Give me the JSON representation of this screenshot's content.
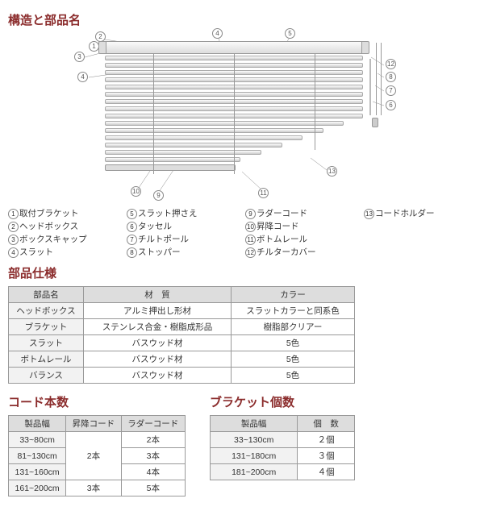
{
  "titles": {
    "structure": "構造と部品名",
    "spec": "部品仕様",
    "cords": "コード本数",
    "brackets": "ブラケット個数"
  },
  "parts": [
    "取付ブラケット",
    "ヘッドボックス",
    "ボックスキャップ",
    "スラット",
    "スラット押さえ",
    "タッセル",
    "チルトポール",
    "ストッパー",
    "ラダーコード",
    "昇降コード",
    "ボトムレール",
    "チルターカバー",
    "コードホルダー"
  ],
  "spec": {
    "headers": [
      "部品名",
      "材　質",
      "カラー"
    ],
    "rows": [
      [
        "ヘッドボックス",
        "アルミ押出し形材",
        "スラットカラーと同系色"
      ],
      [
        "ブラケット",
        "ステンレス合金・樹脂成形品",
        "樹脂部クリアー"
      ],
      [
        "スラット",
        "バスウッド材",
        "5色"
      ],
      [
        "ボトムレール",
        "バスウッド材",
        "5色"
      ],
      [
        "バランス",
        "バスウッド材",
        "5色"
      ]
    ]
  },
  "cords": {
    "headers": [
      "製品幅",
      "昇降コード",
      "ラダーコード"
    ],
    "rows": [
      [
        "33~80cm",
        "2本",
        "2本"
      ],
      [
        "81~130cm",
        "",
        "3本"
      ],
      [
        "131~160cm",
        "",
        "4本"
      ],
      [
        "161~200cm",
        "3本",
        "5本"
      ]
    ],
    "merged_lift": "2本"
  },
  "brackets": {
    "headers": [
      "製品幅",
      "個　数"
    ],
    "rows": [
      [
        "33~130cm",
        "２個"
      ],
      [
        "131~180cm",
        "３個"
      ],
      [
        "181~200cm",
        "４個"
      ]
    ]
  },
  "colors": {
    "heading": "#8b2c2c",
    "border": "#999999",
    "th_bg": "#dddddd"
  }
}
